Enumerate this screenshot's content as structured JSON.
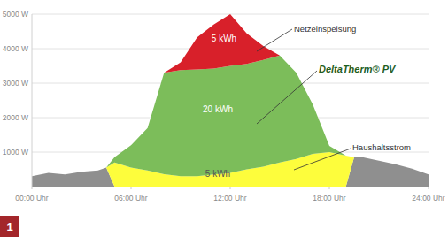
{
  "chart_data": {
    "type": "area",
    "stacked": true,
    "grid": true,
    "figure_label": "1",
    "annotations": [
      "5 kWh",
      "20 kWh",
      "5 kWh"
    ],
    "x": [
      0,
      1,
      2,
      3,
      4,
      4.5,
      5,
      6,
      7,
      8,
      9,
      10,
      11,
      12,
      13,
      14,
      15,
      16,
      17,
      18,
      19,
      19.5,
      20,
      21,
      22,
      23,
      24
    ],
    "xlim": [
      0,
      24
    ],
    "xticks": [
      {
        "value": 0,
        "label": "00:00 Uhr"
      },
      {
        "value": 6,
        "label": "06:00 Uhr"
      },
      {
        "value": 12,
        "label": "12:00 Uhr"
      },
      {
        "value": 18,
        "label": "18:00 Uhr"
      },
      {
        "value": 24,
        "label": "24:00 Uhr"
      }
    ],
    "ylim": [
      0,
      5000
    ],
    "yticks": [
      {
        "value": 1000,
        "label": "1000 W"
      },
      {
        "value": 2000,
        "label": "2000 W"
      },
      {
        "value": 3000,
        "label": "3000 W"
      },
      {
        "value": 4000,
        "label": "4000 W"
      },
      {
        "value": 5000,
        "label": "5000 W"
      }
    ],
    "series": [
      {
        "color": "#8f8f8f",
        "values": [
          300,
          400,
          350,
          430,
          470,
          550,
          0,
          0,
          0,
          0,
          0,
          0,
          0,
          0,
          0,
          0,
          0,
          0,
          0,
          0,
          0,
          850,
          850,
          750,
          650,
          520,
          350
        ]
      },
      {
        "name": "Haushaltsstrom",
        "color": "#fdfd3c",
        "values": [
          0,
          0,
          0,
          0,
          0,
          0,
          700,
          550,
          470,
          360,
          300,
          300,
          350,
          400,
          500,
          580,
          700,
          800,
          950,
          1000,
          900,
          0,
          0,
          0,
          0,
          0,
          0
        ]
      },
      {
        "name": "DeltaTherm® PV",
        "color": "#7cbd5a",
        "values": [
          0,
          0,
          0,
          0,
          0,
          0,
          150,
          650,
          1230,
          2940,
          3080,
          3100,
          3070,
          3100,
          3060,
          3090,
          3100,
          2500,
          1430,
          180,
          0,
          0,
          0,
          0,
          0,
          0,
          0
        ]
      },
      {
        "name": "Netzeinspeisung",
        "color": "#d8202a",
        "values": [
          0,
          0,
          0,
          0,
          0,
          0,
          0,
          0,
          0,
          0,
          220,
          930,
          1280,
          1500,
          880,
          410,
          0,
          0,
          0,
          0,
          0,
          0,
          0,
          0,
          0,
          0,
          0
        ]
      }
    ]
  }
}
